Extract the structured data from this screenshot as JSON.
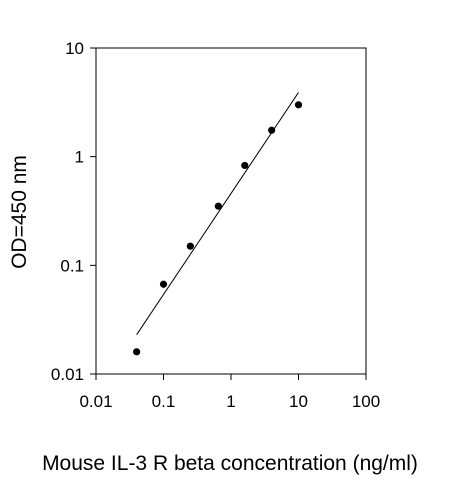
{
  "chart_data": {
    "type": "scatter",
    "title": "",
    "xlabel": "Mouse IL-3 R beta concentration (ng/ml)",
    "ylabel": "OD=450 nm",
    "x_scale": "log",
    "y_scale": "log",
    "xlim": [
      0.01,
      100
    ],
    "ylim": [
      0.01,
      10
    ],
    "x_ticks": [
      "0.01",
      "0.1",
      "1",
      "10",
      "100"
    ],
    "y_ticks": [
      "0.01",
      "0.1",
      "1",
      "10"
    ],
    "grid": false,
    "legend": "none",
    "series": [
      {
        "points": [
          {
            "x": 0.04,
            "y": 0.016
          },
          {
            "x": 0.1,
            "y": 0.067
          },
          {
            "x": 0.25,
            "y": 0.15
          },
          {
            "x": 0.65,
            "y": 0.35
          },
          {
            "x": 1.6,
            "y": 0.83
          },
          {
            "x": 4,
            "y": 1.75
          },
          {
            "x": 10,
            "y": 3.0
          }
        ]
      }
    ],
    "fit_line": {
      "x": [
        0.04,
        10
      ],
      "y": [
        0.023,
        3.9
      ]
    },
    "colors": {
      "points": "#000000",
      "line": "#000000",
      "axes": "#000000"
    }
  }
}
